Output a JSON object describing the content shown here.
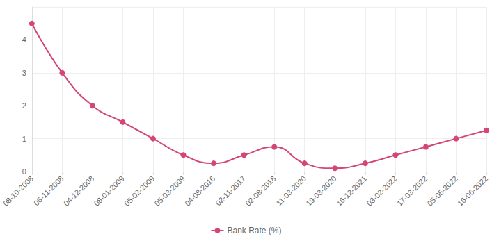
{
  "chart_data": {
    "type": "line",
    "categories": [
      "08-10-2008",
      "06-11-2008",
      "04-12-2008",
      "08-01-2009",
      "05-02-2009",
      "05-03-2009",
      "04-08-2016",
      "02-11-2017",
      "02-08-2018",
      "11-03-2020",
      "19-03-2020",
      "16-12-2021",
      "03-02-2022",
      "17-03-2022",
      "05-05-2022",
      "16-06-2022"
    ],
    "series": [
      {
        "name": "Bank Rate (%)",
        "color": "#d4457a",
        "values": [
          4.5,
          3,
          2,
          1.5,
          1,
          0.5,
          0.25,
          0.5,
          0.75,
          0.25,
          0.1,
          0.25,
          0.5,
          0.75,
          1,
          1.25
        ]
      }
    ],
    "ylim": [
      0,
      5
    ],
    "yticks": [
      0,
      1,
      2,
      3,
      4
    ],
    "grid": true,
    "legend": "bottom",
    "marker": "circle",
    "line_style": "smooth"
  }
}
